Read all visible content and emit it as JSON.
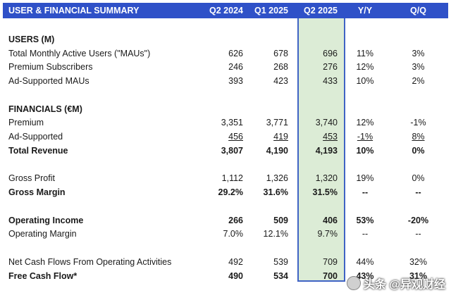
{
  "header": {
    "title": "USER & FINANCIAL SUMMARY",
    "cols": [
      "Q2 2024",
      "Q1 2025",
      "Q2 2025",
      "Y/Y",
      "Q/Q"
    ]
  },
  "users": {
    "section_title": "USERS (M)",
    "rows": [
      {
        "label": "Total Monthly Active Users (\"MAUs\")",
        "v": [
          "626",
          "678",
          "696",
          "11%",
          "3%"
        ]
      },
      {
        "label": "Premium Subscribers",
        "v": [
          "246",
          "268",
          "276",
          "12%",
          "3%"
        ]
      },
      {
        "label": "Ad-Supported MAUs",
        "v": [
          "393",
          "423",
          "433",
          "10%",
          "2%"
        ]
      }
    ]
  },
  "financials": {
    "section_title": "FINANCIALS (€M)",
    "premium": {
      "label": "Premium",
      "v": [
        "3,351",
        "3,771",
        "3,740",
        "12%",
        "-1%"
      ]
    },
    "ad_supported": {
      "label": "Ad-Supported",
      "v": [
        "456",
        "419",
        "453",
        "-1%",
        "8%"
      ]
    },
    "total_revenue": {
      "label": "Total Revenue",
      "v": [
        "3,807",
        "4,190",
        "4,193",
        "10%",
        "0%"
      ]
    },
    "gross_profit": {
      "label": "Gross Profit",
      "v": [
        "1,112",
        "1,326",
        "1,320",
        "19%",
        "0%"
      ]
    },
    "gross_margin": {
      "label": "Gross Margin",
      "v": [
        "29.2%",
        "31.6%",
        "31.5%",
        "--",
        "--"
      ]
    },
    "operating_income": {
      "label": "Operating Income",
      "v": [
        "266",
        "509",
        "406",
        "53%",
        "-20%"
      ]
    },
    "operating_margin": {
      "label": "Operating Margin",
      "v": [
        "7.0%",
        "12.1%",
        "9.7%",
        "--",
        "--"
      ]
    },
    "net_cash": {
      "label": "Net Cash Flows From Operating Activities",
      "v": [
        "492",
        "539",
        "709",
        "44%",
        "32%"
      ]
    },
    "fcf": {
      "label": "Free Cash Flow*",
      "v": [
        "490",
        "534",
        "700",
        "43%",
        "31%"
      ]
    }
  },
  "watermark": "头条 @异观财经"
}
